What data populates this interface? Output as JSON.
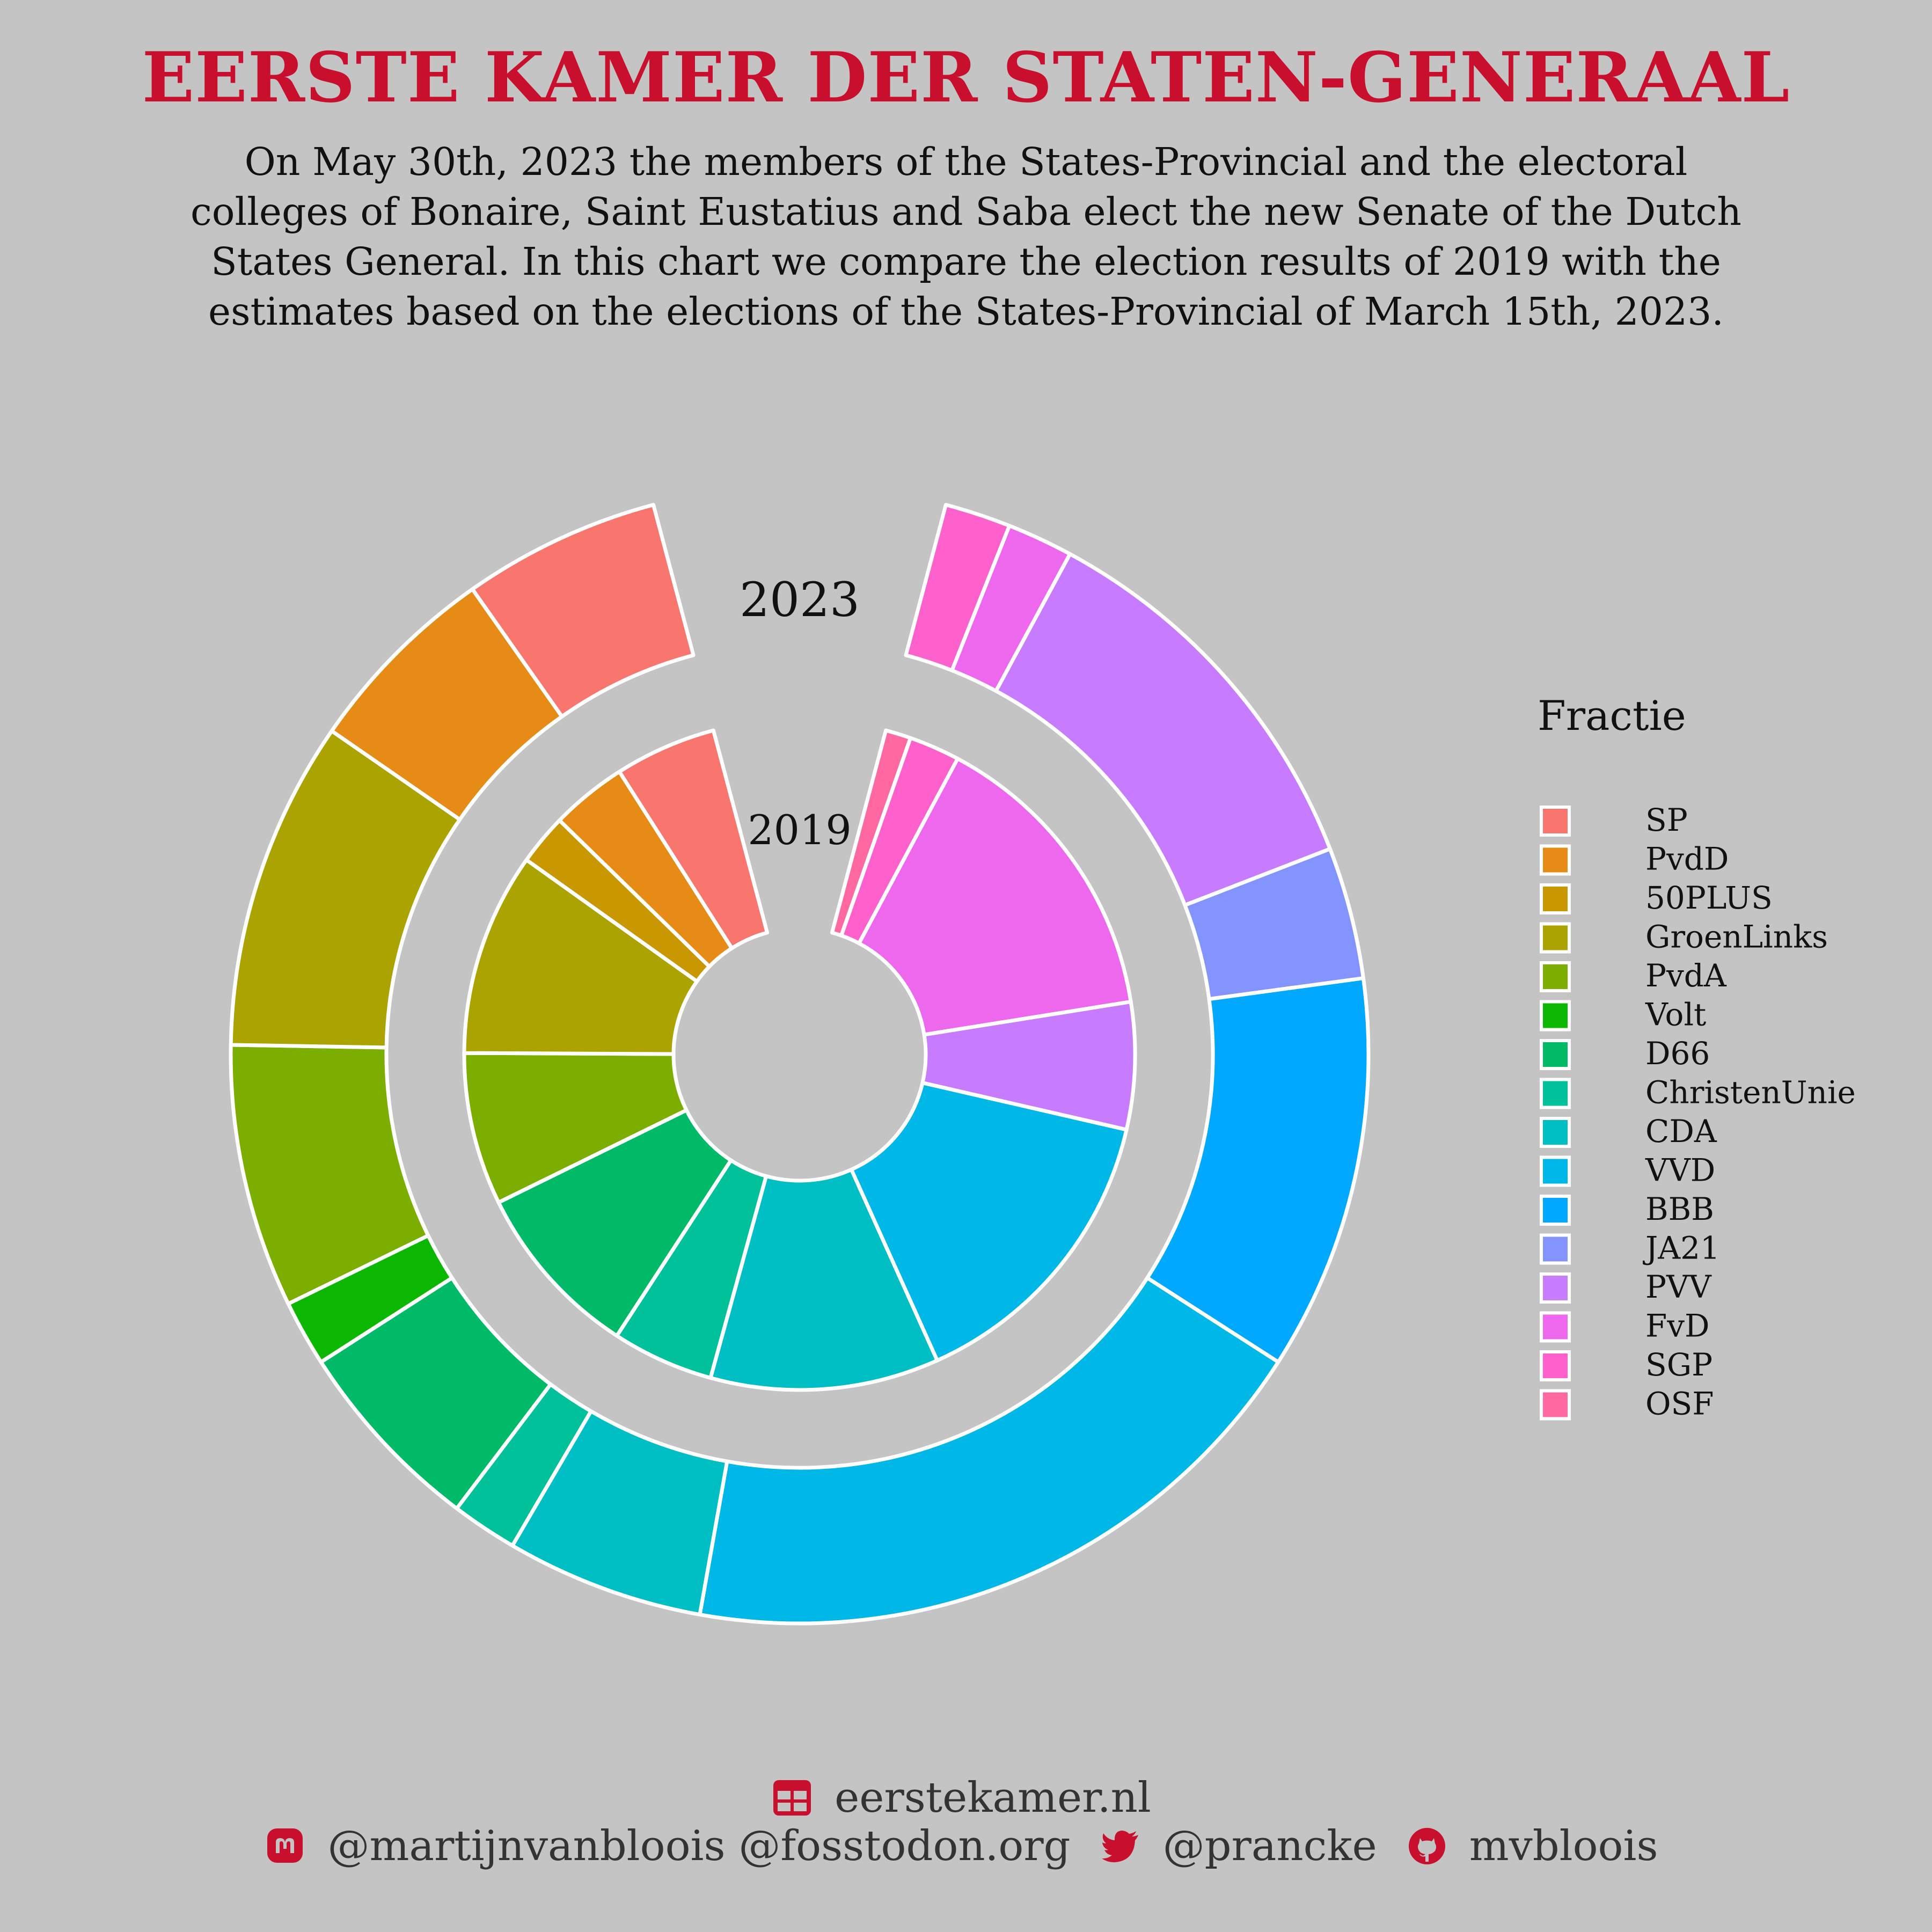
{
  "title": "EERSTE KAMER DER STATEN-GENERAAL",
  "subtitle": "On May 30th, 2023 the members of the States-Provincial and the electoral colleges of Bonaire, Saint Eustatius and Saba elect the new Senate of the Dutch States General. In this chart we compare the election results of 2019 with the estimates based on the elections of the States-Provincial of March 15th, 2023.",
  "chart_data": {
    "type": "pie",
    "variant": "nested-donut",
    "legend_title": "Fractie",
    "legend_position": "right",
    "parties": [
      {
        "name": "SP",
        "color": "#f8766d"
      },
      {
        "name": "PvdD",
        "color": "#e58b16"
      },
      {
        "name": "50PLUS",
        "color": "#c99800"
      },
      {
        "name": "GroenLinks",
        "color": "#aba300"
      },
      {
        "name": "PvdA",
        "color": "#7cae00"
      },
      {
        "name": "Volt",
        "color": "#0cb702"
      },
      {
        "name": "D66",
        "color": "#00ba68"
      },
      {
        "name": "ChristenUnie",
        "color": "#00c19a"
      },
      {
        "name": "CDA",
        "color": "#00bfc4"
      },
      {
        "name": "VVD",
        "color": "#00b8e7"
      },
      {
        "name": "BBB",
        "color": "#00a9ff"
      },
      {
        "name": "JA21",
        "color": "#8494ff"
      },
      {
        "name": "PVV",
        "color": "#c77cff"
      },
      {
        "name": "FvD",
        "color": "#ed68ed"
      },
      {
        "name": "SGP",
        "color": "#ff61cc"
      },
      {
        "name": "OSF",
        "color": "#ff68a1"
      }
    ],
    "series": [
      {
        "name": "2019",
        "values": [
          4,
          3,
          2,
          8,
          6,
          0,
          7,
          4,
          9,
          12,
          0,
          0,
          5,
          12,
          2,
          1
        ]
      },
      {
        "name": "2023",
        "values": [
          3,
          3,
          0,
          5,
          4,
          1,
          3,
          1,
          3,
          10,
          6,
          2,
          6,
          1,
          1,
          0
        ]
      }
    ]
  },
  "footer": {
    "website": "eerstekamer.nl",
    "mastodon": "@martijnvanbloois @fosstodon.org",
    "twitter": "@prancke",
    "github": "mvbloois"
  }
}
